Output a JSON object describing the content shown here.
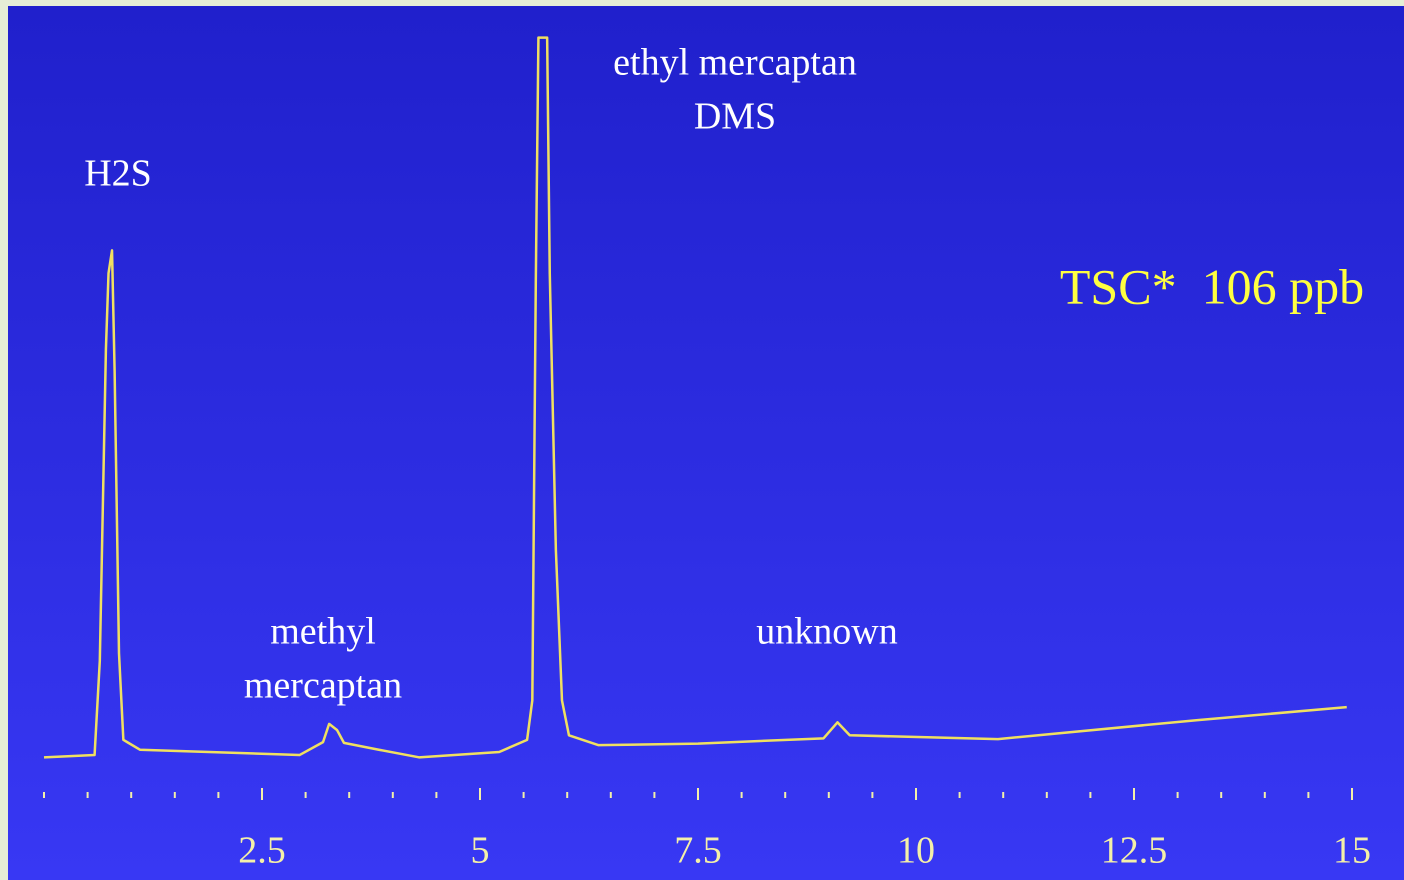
{
  "chart_data": {
    "type": "line",
    "annotations": [
      [
        "H2S"
      ],
      [
        "ethyl mercaptan",
        "DMS"
      ],
      [
        "methyl",
        "mercaptan"
      ],
      [
        "unknown"
      ]
    ],
    "callout": "TSC*  106 ppb",
    "x": [
      0,
      0.58,
      0.64,
      0.71,
      0.74,
      0.78,
      0.81,
      0.86,
      0.91,
      1.1,
      2.93,
      3.2,
      3.27,
      3.36,
      3.44,
      3.84,
      4.3,
      5.22,
      5.54,
      5.6,
      5.64,
      5.67,
      5.77,
      5.8,
      5.87,
      5.94,
      6.02,
      6.36,
      7.5,
      8.94,
      9.1,
      9.24,
      10.94,
      13.23,
      14.94
    ],
    "series": [
      {
        "color": "#f0e060",
        "values": [
          4.3,
          4.6,
          17,
          58,
          68,
          71,
          55,
          18,
          6.6,
          5.3,
          4.6,
          6.3,
          8.7,
          7.9,
          6.2,
          5.3,
          4.3,
          5.0,
          6.6,
          11.8,
          67,
          99,
          99,
          68,
          31.6,
          11.8,
          7.2,
          5.9,
          6.1,
          6.8,
          8.9,
          7.2,
          6.7,
          9.2,
          10.9
        ]
      }
    ],
    "xlim": [
      0,
      15
    ],
    "ylim": [
      0,
      100
    ],
    "xticks": [
      2.5,
      5,
      7.5,
      10,
      12.5,
      15
    ],
    "xminorticks": [
      0,
      0.5,
      1,
      1.5,
      2,
      3,
      3.5,
      4,
      4.5,
      5.5,
      6,
      6.5,
      7,
      8,
      8.5,
      9,
      9.5,
      10.5,
      11,
      11.5,
      12,
      13,
      13.5,
      14,
      14.5
    ]
  }
}
